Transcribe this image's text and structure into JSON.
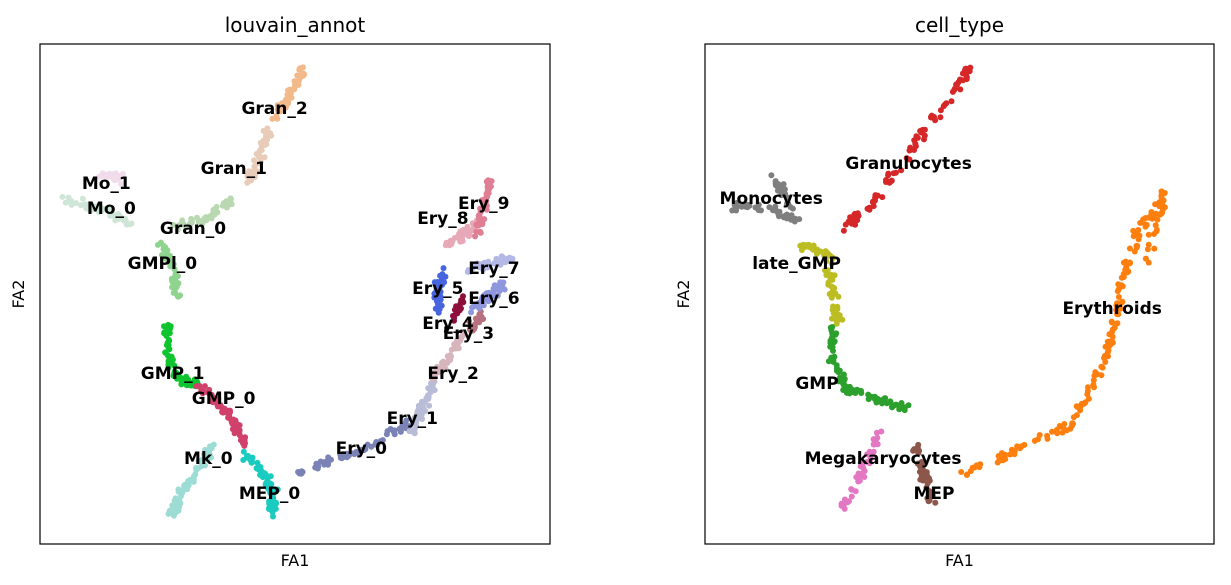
{
  "chart_data": [
    {
      "type": "scatter",
      "title": "louvain_annot",
      "xlabel": "FA1",
      "ylabel": "FA2",
      "xlim": [
        0,
        100
      ],
      "ylim": [
        0,
        100
      ],
      "clusters": [
        {
          "name": "Gran_2",
          "color": "#f2b98a",
          "label_pos": [
            46,
            87
          ],
          "path": [
            [
              46,
              85
            ],
            [
              49,
              90
            ],
            [
              52,
              95
            ]
          ]
        },
        {
          "name": "Gran_1",
          "color": "#e8cbb8",
          "label_pos": [
            38,
            75
          ],
          "path": [
            [
              41,
              72
            ],
            [
              43,
              78
            ],
            [
              45,
              83
            ]
          ]
        },
        {
          "name": "Mo_1",
          "color": "#f0dcea",
          "label_pos": [
            13,
            72
          ],
          "path": [
            [
              12,
              74
            ],
            [
              16,
              73
            ]
          ]
        },
        {
          "name": "Mo_0",
          "color": "#cfe5d8",
          "label_pos": [
            14,
            67
          ],
          "path": [
            [
              5,
              69
            ],
            [
              12,
              67
            ],
            [
              18,
              64
            ]
          ]
        },
        {
          "name": "Gran_0",
          "color": "#b9d8b2",
          "label_pos": [
            30,
            63
          ],
          "path": [
            [
              26,
              63
            ],
            [
              33,
              65
            ],
            [
              38,
              69
            ]
          ]
        },
        {
          "name": "GMPl_0",
          "color": "#8ed48e",
          "label_pos": [
            24,
            56
          ],
          "path": [
            [
              24,
              60
            ],
            [
              26,
              55
            ],
            [
              27,
              49
            ]
          ]
        },
        {
          "name": "GMP_1",
          "color": "#10c42f",
          "label_pos": [
            26,
            34
          ],
          "path": [
            [
              25,
              44
            ],
            [
              25,
              38
            ],
            [
              27,
              33
            ],
            [
              31,
              32
            ]
          ]
        },
        {
          "name": "GMP_0",
          "color": "#d0416b",
          "label_pos": [
            36,
            29
          ],
          "path": [
            [
              31,
              32
            ],
            [
              35,
              28
            ],
            [
              38,
              24
            ],
            [
              40,
              20
            ]
          ]
        },
        {
          "name": "Mk_0",
          "color": "#9cdcd4",
          "label_pos": [
            33,
            17
          ],
          "path": [
            [
              35,
              22
            ],
            [
              31,
              15
            ],
            [
              27,
              9
            ],
            [
              26,
              6
            ]
          ]
        },
        {
          "name": "MEP_0",
          "color": "#1acbc0",
          "label_pos": [
            45,
            10
          ],
          "path": [
            [
              40,
              18
            ],
            [
              44,
              14
            ],
            [
              46,
              10
            ],
            [
              45,
              6
            ]
          ]
        },
        {
          "name": "Ery_0",
          "color": "#7a82b6",
          "label_pos": [
            63,
            19
          ],
          "path": [
            [
              50,
              14
            ],
            [
              58,
              17
            ],
            [
              66,
              20
            ],
            [
              72,
              24
            ]
          ]
        },
        {
          "name": "Ery_1",
          "color": "#b9bcd6",
          "label_pos": [
            73,
            25
          ],
          "path": [
            [
              73,
              22
            ],
            [
              75,
              27
            ],
            [
              77,
              32
            ]
          ]
        },
        {
          "name": "Ery_2",
          "color": "#d7b5bd",
          "label_pos": [
            81,
            34
          ],
          "path": [
            [
              77,
              33
            ],
            [
              80,
              37
            ],
            [
              83,
              42
            ]
          ]
        },
        {
          "name": "Ery_3",
          "color": "#b8717e",
          "label_pos": [
            84,
            42
          ],
          "path": [
            [
              84,
              43
            ],
            [
              87,
              46
            ]
          ]
        },
        {
          "name": "Ery_4",
          "color": "#8f0f3c",
          "label_pos": [
            80,
            44
          ],
          "path": [
            [
              81,
              45
            ],
            [
              83,
              49
            ]
          ]
        },
        {
          "name": "Ery_5",
          "color": "#4665df",
          "label_pos": [
            78,
            51
          ],
          "path": [
            [
              78,
              46
            ],
            [
              78,
              51
            ],
            [
              79,
              55
            ]
          ]
        },
        {
          "name": "Ery_6",
          "color": "#8e96de",
          "label_pos": [
            89,
            49
          ],
          "path": [
            [
              85,
              47
            ],
            [
              88,
              50
            ],
            [
              91,
              52
            ]
          ]
        },
        {
          "name": "Ery_7",
          "color": "#b3b8e6",
          "label_pos": [
            89,
            55
          ],
          "path": [
            [
              84,
              55
            ],
            [
              88,
              56
            ],
            [
              92,
              57
            ]
          ]
        },
        {
          "name": "Ery_8",
          "color": "#e7a8b7",
          "label_pos": [
            79,
            65
          ],
          "path": [
            [
              80,
              60
            ],
            [
              83,
              62
            ],
            [
              86,
              64
            ]
          ]
        },
        {
          "name": "Ery_9",
          "color": "#e07e94",
          "label_pos": [
            87,
            68
          ],
          "path": [
            [
              86,
              62
            ],
            [
              87,
              67
            ],
            [
              88,
              73
            ]
          ]
        }
      ]
    },
    {
      "type": "scatter",
      "title": "cell_type",
      "xlabel": "FA1",
      "ylabel": "FA2",
      "xlim": [
        0,
        100
      ],
      "ylim": [
        0,
        100
      ],
      "clusters": [
        {
          "name": "Granulocytes",
          "color": "#d62728",
          "label_pos": [
            40,
            76
          ],
          "path": [
            [
              27,
              63
            ],
            [
              33,
              68
            ],
            [
              40,
              78
            ],
            [
              47,
              88
            ],
            [
              52,
              95
            ]
          ]
        },
        {
          "name": "Monocytes",
          "color": "#7f7f7f",
          "label_pos": [
            13,
            69
          ],
          "path": [
            [
              5,
              68
            ],
            [
              12,
              67
            ],
            [
              18,
              65
            ],
            [
              13,
              74
            ]
          ]
        },
        {
          "name": "late_GMP",
          "color": "#bcbd22",
          "label_pos": [
            18,
            56
          ],
          "path": [
            [
              18,
              60
            ],
            [
              24,
              58
            ],
            [
              25,
              51
            ],
            [
              26,
              44
            ]
          ]
        },
        {
          "name": "GMP",
          "color": "#2ca02c",
          "label_pos": [
            22,
            32
          ],
          "path": [
            [
              25,
              44
            ],
            [
              25,
              37
            ],
            [
              28,
              31
            ],
            [
              34,
              29
            ],
            [
              40,
              27
            ]
          ]
        },
        {
          "name": "Megakaryocytes",
          "color": "#e377c2",
          "label_pos": [
            35,
            17
          ],
          "path": [
            [
              34,
              22
            ],
            [
              31,
              15
            ],
            [
              27,
              7
            ]
          ]
        },
        {
          "name": "MEP",
          "color": "#8c564b",
          "label_pos": [
            45,
            10
          ],
          "path": [
            [
              41,
              20
            ],
            [
              43,
              14
            ],
            [
              45,
              8
            ]
          ]
        },
        {
          "name": "Erythroids",
          "color": "#ff7f0e",
          "label_pos": [
            80,
            47
          ],
          "path": [
            [
              50,
              14
            ],
            [
              60,
              18
            ],
            [
              72,
              24
            ],
            [
              77,
              33
            ],
            [
              80,
              42
            ],
            [
              82,
              52
            ],
            [
              85,
              62
            ],
            [
              90,
              70
            ],
            [
              87,
              56
            ]
          ]
        }
      ]
    }
  ]
}
